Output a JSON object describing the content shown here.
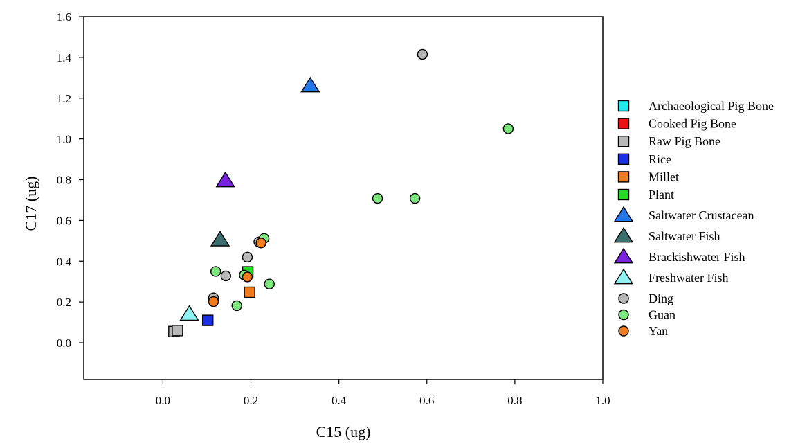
{
  "chart_data": {
    "type": "scatter",
    "xlabel": "C15 (ug)",
    "ylabel": "C17 (ug)",
    "xlim": [
      -0.18,
      1.0
    ],
    "ylim": [
      -0.18,
      1.6
    ],
    "x_ticks": [
      "0.0",
      "0.2",
      "0.4",
      "0.6",
      "0.8",
      "1.0"
    ],
    "x_tick_values": [
      0.0,
      0.2,
      0.4,
      0.6,
      0.8,
      1.0
    ],
    "y_ticks": [
      "0.0",
      "0.2",
      "0.4",
      "0.6",
      "0.8",
      "1.0",
      "1.2",
      "1.4",
      "1.6"
    ],
    "y_tick_values": [
      0.0,
      0.2,
      0.4,
      0.6,
      0.8,
      1.0,
      1.2,
      1.4,
      1.6
    ],
    "grid": false,
    "legend_position": "right",
    "series": [
      {
        "name": "Archaeological Pig Bone",
        "marker": "square",
        "color": "#22e8ee",
        "points": []
      },
      {
        "name": "Cooked Pig Bone",
        "marker": "square",
        "color": "#ee1111",
        "points": []
      },
      {
        "name": "Raw Pig Bone",
        "marker": "square",
        "color": "#b8b8b8",
        "points": [
          [
            0.025,
            0.055
          ],
          [
            0.033,
            0.06
          ]
        ]
      },
      {
        "name": "Rice",
        "marker": "square",
        "color": "#1a2fe0",
        "points": [
          [
            0.102,
            0.11
          ]
        ]
      },
      {
        "name": "Millet",
        "marker": "square",
        "color": "#f07a1e",
        "points": [
          [
            0.197,
            0.248
          ]
        ]
      },
      {
        "name": "Plant",
        "marker": "square",
        "color": "#22dd22",
        "points": [
          [
            0.193,
            0.348
          ]
        ]
      },
      {
        "name": "Saltwater Crustacean",
        "marker": "triangle",
        "color": "#2477e8",
        "points": [
          [
            0.335,
            1.26
          ]
        ]
      },
      {
        "name": "Saltwater Fish",
        "marker": "triangle",
        "color": "#3b6e6e",
        "points": [
          [
            0.13,
            0.505
          ]
        ]
      },
      {
        "name": "Brackishwater Fish",
        "marker": "triangle",
        "color": "#7a22e0",
        "points": [
          [
            0.142,
            0.795
          ]
        ]
      },
      {
        "name": "Freshwater Fish",
        "marker": "triangle",
        "color": "#8ff2f2",
        "points": [
          [
            0.06,
            0.14
          ]
        ]
      },
      {
        "name": "Ding",
        "marker": "circle",
        "color": "#b8b8b8",
        "points": [
          [
            0.59,
            1.415
          ],
          [
            0.192,
            0.42
          ],
          [
            0.143,
            0.328
          ],
          [
            0.115,
            0.22
          ],
          [
            0.218,
            0.495
          ]
        ]
      },
      {
        "name": "Guan",
        "marker": "circle",
        "color": "#7de87d",
        "points": [
          [
            0.785,
            1.05
          ],
          [
            0.488,
            0.708
          ],
          [
            0.573,
            0.708
          ],
          [
            0.23,
            0.512
          ],
          [
            0.12,
            0.35
          ],
          [
            0.185,
            0.332
          ],
          [
            0.242,
            0.288
          ],
          [
            0.168,
            0.182
          ]
        ]
      },
      {
        "name": "Yan",
        "marker": "circle",
        "color": "#f07a1e",
        "points": [
          [
            0.223,
            0.49
          ],
          [
            0.192,
            0.323
          ],
          [
            0.115,
            0.202
          ]
        ]
      }
    ]
  }
}
